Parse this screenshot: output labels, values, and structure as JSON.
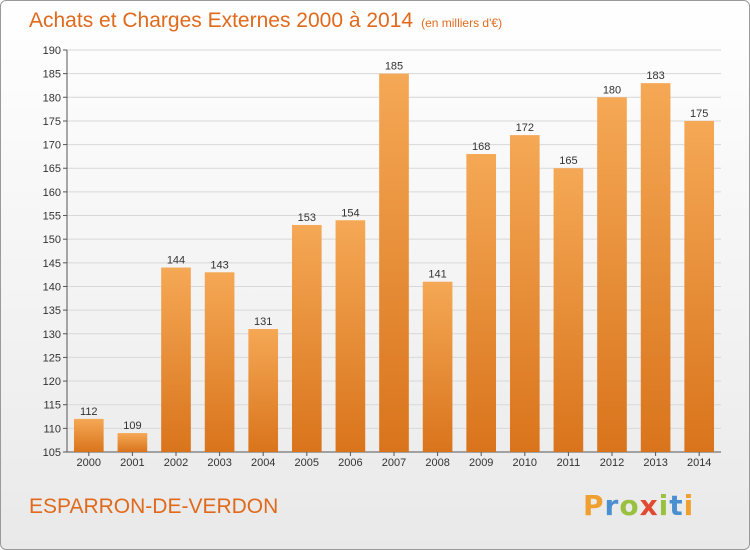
{
  "page": {
    "title": "Achats et Charges Externes 2000 à 2014",
    "subtitle": "(en milliers d'€)",
    "location": "ESPARRON-DE-VERDON",
    "logo": "Proxiti"
  },
  "colors": {
    "accent": "#e06a1c",
    "bar_light": "#f5a855",
    "bar_dark": "#d9741c",
    "grid": "#d8d8d8"
  },
  "chart_data": {
    "type": "bar",
    "title": "Achats et Charges Externes 2000 à 2014",
    "subtitle": "(en milliers d'€)",
    "xlabel": "",
    "ylabel": "",
    "categories": [
      "2000",
      "2001",
      "2002",
      "2003",
      "2004",
      "2005",
      "2006",
      "2007",
      "2008",
      "2009",
      "2010",
      "2011",
      "2012",
      "2013",
      "2014"
    ],
    "values": [
      112,
      109,
      144,
      143,
      131,
      153,
      154,
      185,
      141,
      168,
      172,
      165,
      180,
      183,
      175
    ],
    "ylim": [
      105,
      190
    ],
    "yticks": [
      105,
      110,
      115,
      120,
      125,
      130,
      135,
      140,
      145,
      150,
      155,
      160,
      165,
      170,
      175,
      180,
      185,
      190
    ],
    "grid": true,
    "data_labels": true
  }
}
